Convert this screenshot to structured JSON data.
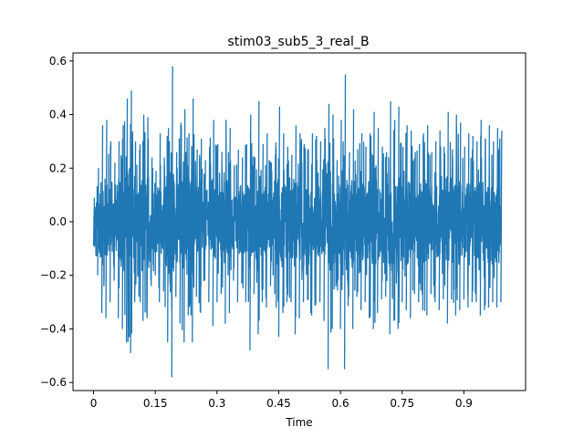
{
  "chart_data": {
    "type": "line",
    "title": "stim03_sub5_3_real_B",
    "xlabel": "Time",
    "ylabel": "",
    "xlim": [
      -0.05,
      1.05
    ],
    "ylim": [
      -0.63,
      0.63
    ],
    "x_ticks": [
      0,
      0.15,
      0.3,
      0.45,
      0.6,
      0.75,
      0.9
    ],
    "x_tick_labels": [
      "0",
      "0.15",
      "0.3",
      "0.45",
      "0.6",
      "0.75",
      "0.9"
    ],
    "y_ticks": [
      -0.6,
      -0.4,
      -0.2,
      0.0,
      0.2,
      0.4,
      0.6
    ],
    "y_tick_labels": [
      "−0.6",
      "−0.4",
      "−0.2",
      "0.0",
      "0.2",
      "0.4",
      "0.6"
    ],
    "grid": false,
    "legend": "none",
    "series_color": "#1f77b4",
    "x_range": [
      0,
      0.99
    ],
    "envelope": {
      "times": [
        0.0,
        0.01,
        0.02,
        0.03,
        0.04,
        0.05,
        0.06,
        0.07,
        0.08,
        0.09,
        0.1,
        0.11,
        0.12,
        0.13,
        0.14,
        0.15,
        0.16,
        0.17,
        0.18,
        0.19,
        0.2,
        0.21,
        0.22,
        0.23,
        0.24,
        0.25,
        0.26,
        0.27,
        0.28,
        0.29,
        0.3,
        0.31,
        0.32,
        0.33,
        0.34,
        0.35,
        0.36,
        0.37,
        0.38,
        0.39,
        0.4,
        0.41,
        0.42,
        0.43,
        0.44,
        0.45,
        0.46,
        0.47,
        0.48,
        0.49,
        0.5,
        0.51,
        0.52,
        0.53,
        0.54,
        0.55,
        0.56,
        0.57,
        0.58,
        0.59,
        0.6,
        0.61,
        0.62,
        0.63,
        0.64,
        0.65,
        0.66,
        0.67,
        0.68,
        0.69,
        0.7,
        0.71,
        0.72,
        0.73,
        0.74,
        0.75,
        0.76,
        0.77,
        0.78,
        0.79,
        0.8,
        0.81,
        0.82,
        0.83,
        0.84,
        0.85,
        0.86,
        0.87,
        0.88,
        0.89,
        0.9,
        0.91,
        0.92,
        0.93,
        0.94,
        0.95,
        0.96,
        0.97,
        0.98,
        0.99
      ],
      "max": [
        0.09,
        0.2,
        0.36,
        0.38,
        0.3,
        0.22,
        0.3,
        0.36,
        0.46,
        0.49,
        0.3,
        0.27,
        0.4,
        0.39,
        0.24,
        0.19,
        0.33,
        0.24,
        0.35,
        0.58,
        0.26,
        0.37,
        0.42,
        0.33,
        0.46,
        0.27,
        0.31,
        0.23,
        0.28,
        0.38,
        0.29,
        0.26,
        0.38,
        0.35,
        0.21,
        0.27,
        0.24,
        0.29,
        0.4,
        0.24,
        0.45,
        0.29,
        0.33,
        0.22,
        0.25,
        0.43,
        0.33,
        0.28,
        0.25,
        0.36,
        0.33,
        0.29,
        0.27,
        0.33,
        0.32,
        0.3,
        0.35,
        0.44,
        0.4,
        0.23,
        0.38,
        0.55,
        0.26,
        0.42,
        0.27,
        0.33,
        0.28,
        0.33,
        0.41,
        0.35,
        0.28,
        0.26,
        0.45,
        0.38,
        0.43,
        0.28,
        0.36,
        0.34,
        0.26,
        0.29,
        0.33,
        0.36,
        0.26,
        0.3,
        0.34,
        0.28,
        0.41,
        0.27,
        0.4,
        0.37,
        0.28,
        0.33,
        0.32,
        0.3,
        0.38,
        0.31,
        0.36,
        0.3,
        0.35,
        0.34
      ],
      "min": [
        -0.09,
        -0.2,
        -0.34,
        -0.36,
        -0.3,
        -0.22,
        -0.36,
        -0.4,
        -0.45,
        -0.49,
        -0.3,
        -0.28,
        -0.37,
        -0.36,
        -0.24,
        -0.2,
        -0.3,
        -0.26,
        -0.45,
        -0.58,
        -0.28,
        -0.38,
        -0.45,
        -0.35,
        -0.45,
        -0.28,
        -0.34,
        -0.22,
        -0.3,
        -0.39,
        -0.3,
        -0.27,
        -0.38,
        -0.34,
        -0.22,
        -0.3,
        -0.23,
        -0.3,
        -0.48,
        -0.27,
        -0.42,
        -0.3,
        -0.32,
        -0.24,
        -0.27,
        -0.43,
        -0.34,
        -0.3,
        -0.3,
        -0.42,
        -0.36,
        -0.3,
        -0.29,
        -0.35,
        -0.31,
        -0.3,
        -0.37,
        -0.55,
        -0.4,
        -0.23,
        -0.4,
        -0.55,
        -0.28,
        -0.4,
        -0.28,
        -0.33,
        -0.3,
        -0.36,
        -0.4,
        -0.34,
        -0.29,
        -0.28,
        -0.42,
        -0.37,
        -0.4,
        -0.3,
        -0.33,
        -0.36,
        -0.27,
        -0.3,
        -0.33,
        -0.35,
        -0.27,
        -0.3,
        -0.33,
        -0.29,
        -0.38,
        -0.29,
        -0.35,
        -0.33,
        -0.29,
        -0.32,
        -0.3,
        -0.3,
        -0.35,
        -0.33,
        -0.32,
        -0.3,
        -0.32,
        -0.3
      ]
    }
  }
}
